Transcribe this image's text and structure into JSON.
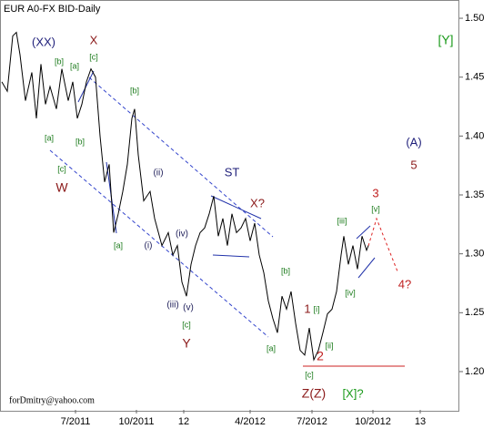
{
  "chart_data": {
    "type": "line",
    "title": "EUR A0-FX BID-Daily",
    "footer": "forDmitry@yahoo.com",
    "xlim": [
      0,
      505
    ],
    "ylim": [
      1.1675,
      1.5155
    ],
    "xticks": [
      {
        "value": 83,
        "label": "7/2011"
      },
      {
        "value": 150,
        "label": "10/2011"
      },
      {
        "value": 202,
        "label": "12"
      },
      {
        "value": 275,
        "label": "4/2012"
      },
      {
        "value": 343,
        "label": "7/2012"
      },
      {
        "value": 410,
        "label": "10/2012"
      },
      {
        "value": 462,
        "label": "13"
      }
    ],
    "yticks": [
      {
        "value": 1.2,
        "label": "1.20"
      },
      {
        "value": 1.25,
        "label": "1.25"
      },
      {
        "value": 1.3,
        "label": "1.30"
      },
      {
        "value": 1.35,
        "label": "1.35"
      },
      {
        "value": 1.4,
        "label": "1.40"
      },
      {
        "value": 1.45,
        "label": "1.45"
      },
      {
        "value": 1.5,
        "label": "1.50"
      }
    ],
    "grid": false,
    "series": [
      {
        "name": "EUR",
        "color": "#000000",
        "x": [
          2,
          8,
          14,
          18,
          22,
          28,
          35,
          40,
          45,
          50,
          55,
          62,
          68,
          75,
          80,
          85,
          90,
          95,
          100,
          105,
          110,
          115,
          120,
          125,
          130,
          135,
          140,
          145,
          148,
          152,
          158,
          165,
          170,
          178,
          185,
          190,
          195,
          200,
          205,
          210,
          215,
          220,
          225,
          230,
          235,
          240,
          245,
          250,
          255,
          260,
          265,
          270,
          275,
          280,
          285,
          290,
          295,
          300,
          305,
          310,
          315,
          320,
          325,
          330,
          335,
          340,
          345,
          350,
          355,
          360,
          365,
          370,
          375,
          378,
          383,
          388,
          393,
          398,
          403,
          405
        ],
        "values": [
          1.446,
          1.438,
          1.485,
          1.488,
          1.469,
          1.43,
          1.454,
          1.415,
          1.461,
          1.427,
          1.442,
          1.423,
          1.457,
          1.43,
          1.446,
          1.415,
          1.427,
          1.446,
          1.457,
          1.45,
          1.4,
          1.361,
          1.376,
          1.318,
          1.334,
          1.353,
          1.376,
          1.415,
          1.423,
          1.384,
          1.345,
          1.353,
          1.33,
          1.307,
          1.318,
          1.299,
          1.307,
          1.276,
          1.264,
          1.291,
          1.307,
          1.318,
          1.322,
          1.334,
          1.349,
          1.315,
          1.33,
          1.307,
          1.334,
          1.318,
          1.322,
          1.33,
          1.311,
          1.326,
          1.299,
          1.284,
          1.26,
          1.245,
          1.233,
          1.264,
          1.253,
          1.268,
          1.241,
          1.218,
          1.214,
          1.237,
          1.21,
          1.218,
          1.233,
          1.249,
          1.253,
          1.268,
          1.299,
          1.315,
          1.291,
          1.307,
          1.287,
          1.315,
          1.303,
          1.307
        ]
      }
    ],
    "annotations": [
      {
        "text": "(XX)",
        "color": "#1f1f7a"
      },
      {
        "text": "X",
        "color": "#8b1a1a"
      },
      {
        "text": "[b]",
        "color": "#1a7a1a"
      },
      {
        "text": "[a]",
        "color": "#1a7a1a"
      },
      {
        "text": "[c]",
        "color": "#1a7a1a"
      },
      {
        "text": "[b]",
        "color": "#1a7a1a"
      },
      {
        "text": "[a]",
        "color": "#1a7a1a"
      },
      {
        "text": "[b]",
        "color": "#1a7a1a"
      },
      {
        "text": "[c]",
        "color": "#1a7a1a"
      },
      {
        "text": "W",
        "color": "#8b1a1a"
      },
      {
        "text": "(ii)",
        "color": "#1f1f5a"
      },
      {
        "text": "ST",
        "color": "#1f1f7a"
      },
      {
        "text": "X?",
        "color": "#8b1a1a"
      },
      {
        "text": "3",
        "color": "#c02020"
      },
      {
        "text": "[v]",
        "color": "#1a7a1a"
      },
      {
        "text": "[iii]",
        "color": "#1a7a1a"
      },
      {
        "text": "(A)",
        "color": "#1f1f7a"
      },
      {
        "text": "5",
        "color": "#8b1a1a"
      },
      {
        "text": "[Y]",
        "color": "#1a9a1a"
      },
      {
        "text": "[a]",
        "color": "#1a7a1a"
      },
      {
        "text": "(i)",
        "color": "#1f1f5a"
      },
      {
        "text": "(iv)",
        "color": "#1f1f5a"
      },
      {
        "text": "(iii)",
        "color": "#1f1f5a"
      },
      {
        "text": "(v)",
        "color": "#1f1f5a"
      },
      {
        "text": "[c]",
        "color": "#1a7a1a"
      },
      {
        "text": "Y",
        "color": "#8b1a1a"
      },
      {
        "text": "[b]",
        "color": "#1a7a1a"
      },
      {
        "text": "[a]",
        "color": "#1a7a1a"
      },
      {
        "text": "[iv]",
        "color": "#1a7a1a"
      },
      {
        "text": "4?",
        "color": "#c02020"
      },
      {
        "text": "1",
        "color": "#8b1a1a"
      },
      {
        "text": "[i]",
        "color": "#1a7a1a"
      },
      {
        "text": "[ii]",
        "color": "#1a7a1a"
      },
      {
        "text": "2",
        "color": "#c02020"
      },
      {
        "text": "[c]",
        "color": "#1a7a1a"
      },
      {
        "text": "Z(Z)",
        "color": "#8b1a1a"
      },
      {
        "text": "[X]?",
        "color": "#1a9a1a"
      }
    ]
  }
}
